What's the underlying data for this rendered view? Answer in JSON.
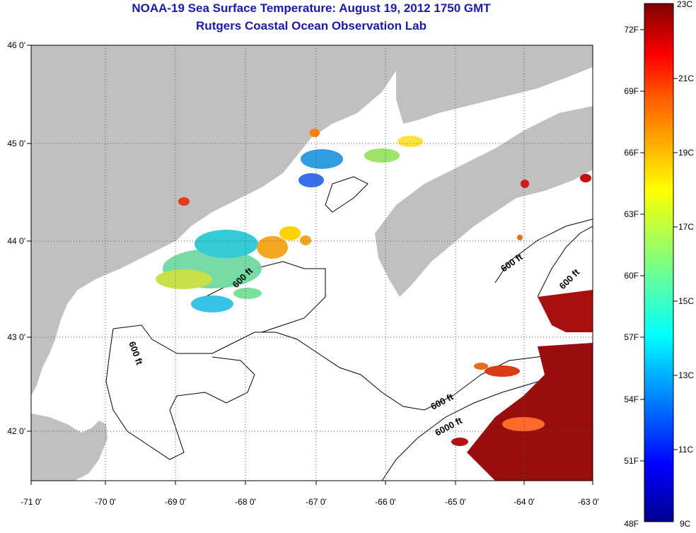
{
  "title": {
    "line1": "NOAA-19 Sea Surface Temperature:  August 19, 2012 1750 GMT",
    "line2": "Rutgers Coastal Ocean Observation Lab"
  },
  "axes": {
    "x_ticks": [
      "-71 0'",
      "-70 0'",
      "-69 0'",
      "-68 0'",
      "-67 0'",
      "-66 0'",
      "-65 0'",
      "-64 0'",
      "-63 0'"
    ],
    "y_ticks": [
      "46 0'",
      "45 0'",
      "44 0'",
      "43 0'",
      "42 0'"
    ]
  },
  "contour_labels": [
    "600 ft",
    "600 ft",
    "600 ft",
    "600 ft",
    "600 ft",
    "6000 ft"
  ],
  "colorbar": {
    "fahrenheit_labels": [
      "72F",
      "69F",
      "66F",
      "63F",
      "60F",
      "57F",
      "54F",
      "51F",
      "48F"
    ],
    "celsius_labels": [
      "23C",
      "21C",
      "19C",
      "17C",
      "15C",
      "13C",
      "11C",
      "9C"
    ],
    "range_celsius": [
      9,
      23
    ]
  },
  "colors": {
    "land": "#c0c0c0",
    "ocean_no_data": "#ffffff",
    "title_text": "#1a1aa6",
    "gridline": "#555555"
  }
}
